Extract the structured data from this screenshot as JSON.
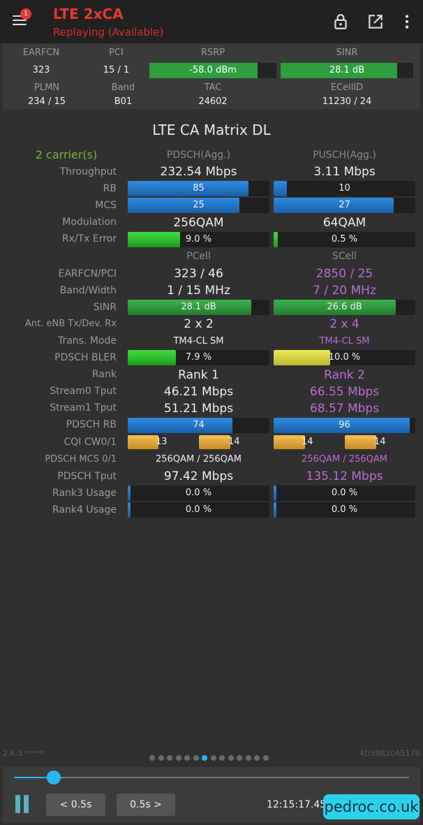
{
  "appbar": {
    "title": "LTE 2xCA",
    "subtitle": "Replaying (Available)",
    "notification_count": "1",
    "icons": [
      "menu-icon",
      "lock-icon",
      "open-external-icon",
      "more-vert-icon"
    ]
  },
  "summary": {
    "headers1": [
      "EARFCN",
      "PCI",
      "RSRP",
      "SINR"
    ],
    "values1": {
      "earfcn": "323",
      "pci": "15 / 1",
      "rsrp": "-58.0 dBm",
      "sinr": "28.1 dB"
    },
    "rsrp_fill": 0.85,
    "sinr_fill": 0.88,
    "headers2": [
      "PLMN",
      "Band",
      "TAC",
      "ECellID"
    ],
    "values2": {
      "plmn": "234 / 15",
      "band": "B01",
      "tac": "24602",
      "ecellid": "11230 / 24"
    }
  },
  "matrix": {
    "title": "LTE CA Matrix DL",
    "carriers": "2 carrier(s)",
    "pdsch_header": "PDSCH(Agg.)",
    "pusch_header": "PUSCH(Agg.)",
    "labels": {
      "throughput": "Throughput",
      "rb": "RB",
      "mcs": "MCS",
      "modulation": "Modulation",
      "rxtx_error": "Rx/Tx Error",
      "earfcn_pci": "EARFCN/PCI",
      "band_width": "Band/Width",
      "sinr": "SINR",
      "ant": "Ant. eNB Tx/Dev. Rx",
      "trans_mode": "Trans. Mode",
      "pdsch_bler": "PDSCH BLER",
      "rank": "Rank",
      "stream0": "Stream0 Tput",
      "stream1": "Stream1 Tput",
      "pdsch_rb": "PDSCH RB",
      "cqi": "CQI CW0/1",
      "pdsch_mcs": "PDSCH MCS 0/1",
      "pdsch_tput": "PDSCH Tput",
      "rank3": "Rank3 Usage",
      "rank4": "Rank4 Usage"
    },
    "agg": {
      "pdsch": {
        "throughput": "232.54 Mbps",
        "rb": "85",
        "mcs": "25",
        "modulation": "256QAM",
        "error": "9.0 %"
      },
      "pusch": {
        "throughput": "3.11 Mbps",
        "rb": "10",
        "mcs": "27",
        "modulation": "64QAM",
        "error": "0.5 %"
      }
    },
    "agg_fill": {
      "pdsch": {
        "rb": 0.85,
        "mcs": 0.786,
        "error": 0.37
      },
      "pusch": {
        "rb": 0.095,
        "mcs": 0.845,
        "error": 0.03
      }
    },
    "pcell_header": "PCell",
    "scell_header": "SCell",
    "pcell": {
      "earfcn_pci": "323 / 46",
      "band_width": "1 / 15 MHz",
      "sinr": "28.1 dB",
      "ant": "2 x 2",
      "trans_mode": "TM4-CL SM",
      "bler": "7.9 %",
      "rank": "Rank 1",
      "stream0": "46.21 Mbps",
      "stream1": "51.21 Mbps",
      "pdsch_rb": "74",
      "cqi0": "13",
      "cqi1": "14",
      "pdsch_mcs": "256QAM / 256QAM",
      "pdsch_tput": "97.42 Mbps",
      "rank3": "0.0 %",
      "rank4": "0.0 %"
    },
    "scell": {
      "earfcn_pci": "2850 / 25",
      "band_width": "7 / 20 MHz",
      "sinr": "26.6 dB",
      "ant": "2 x 4",
      "trans_mode": "TM4-CL SM",
      "bler": "10.0 %",
      "rank": "Rank 2",
      "stream0": "66.55 Mbps",
      "stream1": "68.57 Mbps",
      "pdsch_rb": "96",
      "cqi0": "14",
      "cqi1": "14",
      "pdsch_mcs": "256QAM / 256QAM",
      "pdsch_tput": "135.12 Mbps",
      "rank3": "0.0 %",
      "rank4": "0.0 %"
    },
    "cell_fill": {
      "pcell": {
        "sinr": 0.87,
        "bler": 0.34,
        "pdsch_rb": 0.74,
        "cqi0": 0.87,
        "cqi1": 0.93,
        "rank3": 0.02,
        "rank4": 0.02
      },
      "scell": {
        "sinr": 0.86,
        "bler": 0.4,
        "pdsch_rb": 0.96,
        "cqi0": 0.93,
        "cqi1": 0.93,
        "rank3": 0.02,
        "rank4": 0.02
      }
    }
  },
  "footer": {
    "version": "2.6.3 *****",
    "device_id": "4D59B20A517B",
    "page_count": 14,
    "active_page": 7
  },
  "player": {
    "progress": 0.1,
    "back_label": "< 0.5s",
    "fwd_label": "0.5s >",
    "time": "12:15:17.45",
    "icons": [
      "pause-icon"
    ]
  },
  "watermark": "pedroc.co.uk",
  "colors": {
    "accent": "#29b6f6",
    "title_red": "#e53935",
    "scell_purple": "#b86ed0",
    "carrier_green": "#7cb342"
  }
}
